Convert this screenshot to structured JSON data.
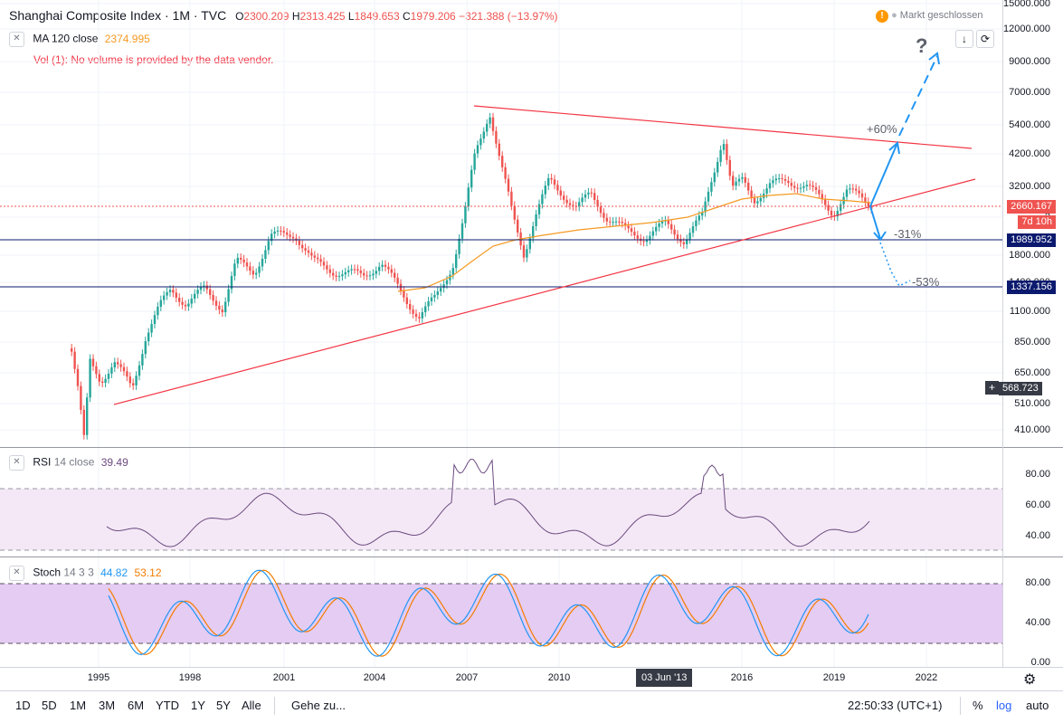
{
  "header": {
    "title": "Shanghai Composite Index · 1M · TVC",
    "o_label": "O",
    "o_value": "2300.209",
    "h_label": "H",
    "h_value": "2313.425",
    "l_label": "L",
    "l_value": "1849.653",
    "c_label": "C",
    "c_value": "1979.206",
    "change": "−321.388 (−13.97%)",
    "market_status": "Markt geschlossen"
  },
  "legends": {
    "ma_label": "MA 120 close",
    "ma_value": "2374.995",
    "vol_message": "Vol (1): No volume is provided by the data vendor.",
    "rsi_label": "RSI",
    "rsi_params": "14 close",
    "rsi_value": "39.49",
    "stoch_label": "Stoch",
    "stoch_params": "14 3 3",
    "stoch_k": "44.82",
    "stoch_d": "53.12"
  },
  "price_axis": [
    "15000.000",
    "12000.000",
    "9000.000",
    "7000.000",
    "5400.000",
    "4200.000",
    "3200.000",
    "2",
    "1800.000",
    "1400.000",
    "1100.000",
    "850.000",
    "650.000",
    "510.000",
    "410.000"
  ],
  "price_tags": {
    "last": "2660.167",
    "countdown": "7d 10h",
    "line1": "1989.952",
    "line2": "1337.156",
    "crosshair": "568.723"
  },
  "rsi_axis": [
    "80.00",
    "60.00",
    "40.00"
  ],
  "stoch_axis": [
    "80.00",
    "40.00",
    "0.00"
  ],
  "time_axis": [
    "1995",
    "1998",
    "2001",
    "2004",
    "2007",
    "2010",
    "2016",
    "2019",
    "2022"
  ],
  "time_crosshair": "03 Jun '13",
  "annotations": {
    "up": "+60%",
    "question": "?",
    "down1": "-31%",
    "down2": "-53%"
  },
  "bottom_bar": {
    "ranges": [
      "1D",
      "5D",
      "1M",
      "3M",
      "6M",
      "YTD",
      "1Y",
      "5Y",
      "Alle"
    ],
    "goto": "Gehe zu...",
    "clock": "22:50:33 (UTC+1)",
    "percent": "%",
    "log": "log",
    "auto": "auto"
  },
  "colors": {
    "up": "#26a69a",
    "down": "#ef5350",
    "ma": "#f59a23",
    "rsi": "#6b4a7f",
    "trend": "#f23645",
    "arrow": "#2196f3"
  }
}
